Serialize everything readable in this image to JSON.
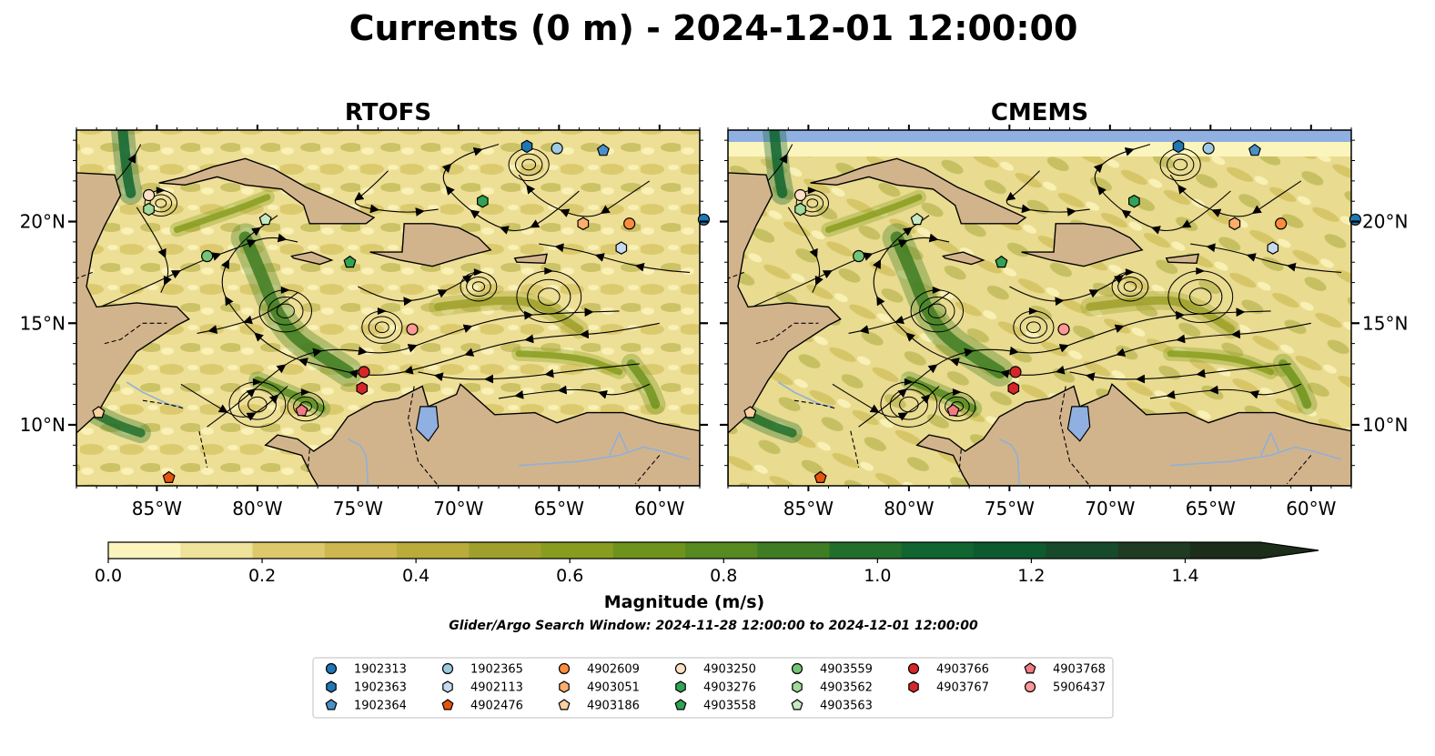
{
  "title": "Currents (0 m) - 2024-12-01 12:00:00",
  "panels": [
    {
      "title": "RTOFS"
    },
    {
      "title": "CMEMS"
    }
  ],
  "colorbar": {
    "label": "Magnitude (m/s)",
    "ticks": [
      "0.0",
      "0.2",
      "0.4",
      "0.6",
      "0.8",
      "1.0",
      "1.2",
      "1.4"
    ],
    "colors": [
      "#fbf5bd",
      "#efe29a",
      "#ddc86c",
      "#cdb74e",
      "#b9ac3b",
      "#9fa02b",
      "#889d20",
      "#6e931d",
      "#56891f",
      "#3e7d23",
      "#216f2b",
      "#116530",
      "#0d5a2e",
      "#174a2a",
      "#1f3b22",
      "#1c2d19"
    ]
  },
  "search_window": "Glider/Argo Search Window: 2024-11-28 12:00:00 to 2024-12-01 12:00:00",
  "colors": {
    "land": "#d2b48c",
    "water_fill": "#8fb0e0",
    "river": "#8fb0d8"
  },
  "chart_data": {
    "type": "map",
    "variable": "Ocean current speed at 0 m depth",
    "xlim": [
      -89,
      -58
    ],
    "ylim": [
      7,
      24.5
    ],
    "xticks": [
      "85°W",
      "80°W",
      "75°W",
      "70°W",
      "65°W",
      "60°W"
    ],
    "yticks": [
      "10°N",
      "15°N",
      "20°N"
    ],
    "floats": [
      {
        "id": "1902313",
        "marker": "circle",
        "color": "#1f77b4",
        "lon": -57.8,
        "lat": 20.1
      },
      {
        "id": "1902363",
        "marker": "hexagon",
        "color": "#1f77b4",
        "lon": -66.6,
        "lat": 23.7
      },
      {
        "id": "1902364",
        "marker": "pentagon",
        "color": "#4a90c8",
        "lon": -62.8,
        "lat": 23.5
      },
      {
        "id": "1902365",
        "marker": "circle",
        "color": "#9ecae1",
        "lon": -65.1,
        "lat": 23.6
      },
      {
        "id": "4902113",
        "marker": "hexagon",
        "color": "#c6dbef",
        "lon": -61.9,
        "lat": 18.7
      },
      {
        "id": "4902476",
        "marker": "pentagon",
        "color": "#e6550d",
        "lon": -84.4,
        "lat": 7.4
      },
      {
        "id": "4902609",
        "marker": "circle",
        "color": "#fd8d3c",
        "lon": -61.5,
        "lat": 19.9
      },
      {
        "id": "4903051",
        "marker": "hexagon",
        "color": "#fdae6b",
        "lon": -63.8,
        "lat": 19.9
      },
      {
        "id": "4903186",
        "marker": "pentagon",
        "color": "#fdd0a2",
        "lon": -87.9,
        "lat": 10.6
      },
      {
        "id": "4903250",
        "marker": "circle",
        "color": "#fde0c5",
        "lon": -85.4,
        "lat": 21.3
      },
      {
        "id": "4903276",
        "marker": "hexagon",
        "color": "#31a354",
        "lon": -68.8,
        "lat": 21.0
      },
      {
        "id": "4903558",
        "marker": "pentagon",
        "color": "#31a354",
        "lon": -75.4,
        "lat": 18.0
      },
      {
        "id": "4903559",
        "marker": "circle",
        "color": "#74c476",
        "lon": -82.5,
        "lat": 18.3
      },
      {
        "id": "4903562",
        "marker": "hexagon",
        "color": "#a1d99b",
        "lon": -85.4,
        "lat": 20.6
      },
      {
        "id": "4903563",
        "marker": "pentagon",
        "color": "#c7e9c0",
        "lon": -79.6,
        "lat": 20.1
      },
      {
        "id": "4903766",
        "marker": "circle",
        "color": "#d62728",
        "lon": -74.7,
        "lat": 12.6
      },
      {
        "id": "4903767",
        "marker": "hexagon",
        "color": "#d62728",
        "lon": -74.8,
        "lat": 11.8
      },
      {
        "id": "4903768",
        "marker": "pentagon",
        "color": "#f07b84",
        "lon": -77.8,
        "lat": 10.7
      },
      {
        "id": "5906437",
        "marker": "circle",
        "color": "#ff9896",
        "lon": -72.3,
        "lat": 14.7
      }
    ]
  },
  "legend": {
    "columns": [
      [
        {
          "id": "1902313",
          "marker": "circle",
          "color": "#1f77b4"
        },
        {
          "id": "1902363",
          "marker": "hexagon",
          "color": "#1f77b4"
        },
        {
          "id": "1902364",
          "marker": "pentagon",
          "color": "#4a90c8"
        }
      ],
      [
        {
          "id": "1902365",
          "marker": "circle",
          "color": "#9ecae1"
        },
        {
          "id": "4902113",
          "marker": "hexagon",
          "color": "#c6dbef"
        },
        {
          "id": "4902476",
          "marker": "pentagon",
          "color": "#e6550d"
        }
      ],
      [
        {
          "id": "4902609",
          "marker": "circle",
          "color": "#fd8d3c"
        },
        {
          "id": "4903051",
          "marker": "hexagon",
          "color": "#fdae6b"
        },
        {
          "id": "4903186",
          "marker": "pentagon",
          "color": "#fdd0a2"
        }
      ],
      [
        {
          "id": "4903250",
          "marker": "circle",
          "color": "#fde0c5"
        },
        {
          "id": "4903276",
          "marker": "hexagon",
          "color": "#31a354"
        },
        {
          "id": "4903558",
          "marker": "pentagon",
          "color": "#31a354"
        }
      ],
      [
        {
          "id": "4903559",
          "marker": "circle",
          "color": "#74c476"
        },
        {
          "id": "4903562",
          "marker": "hexagon",
          "color": "#a1d99b"
        },
        {
          "id": "4903563",
          "marker": "pentagon",
          "color": "#c7e9c0"
        }
      ],
      [
        {
          "id": "4903766",
          "marker": "circle",
          "color": "#d62728"
        },
        {
          "id": "4903767",
          "marker": "hexagon",
          "color": "#d62728"
        }
      ],
      [
        {
          "id": "4903768",
          "marker": "pentagon",
          "color": "#f07b84"
        },
        {
          "id": "5906437",
          "marker": "circle",
          "color": "#ff9896"
        }
      ]
    ]
  }
}
